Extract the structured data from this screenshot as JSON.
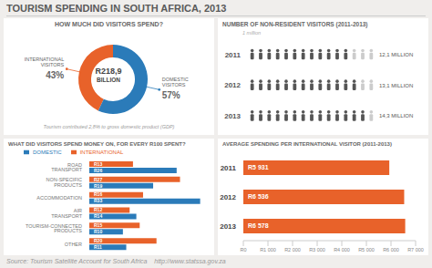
{
  "title": "TOURISM SPENDING IN SOUTH AFRICA, 2013",
  "annotations": [
    "Source: Tourism Satellite Account for South Africa    http://www.statssa.gov.za"
  ],
  "chart_data": [
    {
      "type": "pie",
      "title": "HOW MUCH DID VISITORS SPEND?",
      "categories": [
        "INTERNATIONAL VISITORS",
        "DOMESTIC VISITORS"
      ],
      "values": [
        43,
        57
      ],
      "value_labels": [
        "43%",
        "57%"
      ],
      "colors": [
        "#e8622a",
        "#2b7bb9"
      ],
      "data_labels": true,
      "annotations": [
        "R218,9",
        "BILLION",
        "Tourism contributed 2,8% to gross domestic product (GDP)"
      ]
    },
    {
      "type": "pictograph",
      "title": "NUMBER OF NON-RESIDENT VISITORS (2011-2013)",
      "categories": [
        "2011",
        "2012",
        "2013"
      ],
      "values": [
        12.1,
        13.1,
        14.3
      ],
      "value_labels": [
        "12,1 MILLION",
        "13,1 MILLION",
        "14,3 MILLION"
      ],
      "color": "#555555",
      "orientation": "horizontal",
      "xlim": [
        0,
        15
      ],
      "tick_labels": "y",
      "data_labels": true,
      "annotations": [
        "1 million"
      ]
    },
    {
      "type": "bar",
      "title": "WHAT DID VISITORS SPEND MONEY ON, FOR EVERY R100 SPENT?",
      "orientation": "horizontal",
      "categories": [
        "ROAD TRANSPORT",
        "NON-SPECIFIC PRODUCTS",
        "ACCOMMODATION",
        "AIR TRANSPORT",
        "TOURISM-CONNECTED PRODUCTS",
        "OTHER"
      ],
      "series": [
        {
          "name": "INTERNATIONAL",
          "color": "#e8622a",
          "values": [
            13,
            27,
            16,
            12,
            15,
            20
          ],
          "value_labels": [
            "R13",
            "R27",
            "R16",
            "R12",
            "R15",
            "R20"
          ]
        },
        {
          "name": "DOMESTIC",
          "color": "#2b7bb9",
          "values": [
            26,
            19,
            33,
            14,
            10,
            11
          ],
          "value_labels": [
            "R26",
            "R19",
            "R33",
            "R14",
            "R10",
            "R11"
          ]
        }
      ],
      "xlim": [
        0,
        35
      ],
      "tick_labels": "y",
      "legend": "top",
      "data_labels": true
    },
    {
      "type": "bar",
      "title": "AVERAGE SPENDING PER INTERNATIONAL VISITOR (2011-2013)",
      "orientation": "horizontal",
      "categories": [
        "2011",
        "2012",
        "2013"
      ],
      "values": [
        5931,
        6536,
        6578
      ],
      "value_labels": [
        "R5 931",
        "R6 536",
        "R6 578"
      ],
      "color": "#e8622a",
      "xlim": [
        0,
        7000
      ],
      "xticks": [
        {
          "value": 0,
          "label": "R0"
        },
        {
          "value": 1000,
          "label": "R1 000"
        },
        {
          "value": 2000,
          "label": "R2 000"
        },
        {
          "value": 3000,
          "label": "R3 000"
        },
        {
          "value": 4000,
          "label": "R4 000"
        },
        {
          "value": 5000,
          "label": "R5 000"
        },
        {
          "value": 6000,
          "label": "R6 000"
        },
        {
          "value": 7000,
          "label": "R7 000"
        }
      ],
      "data_labels": true
    }
  ]
}
